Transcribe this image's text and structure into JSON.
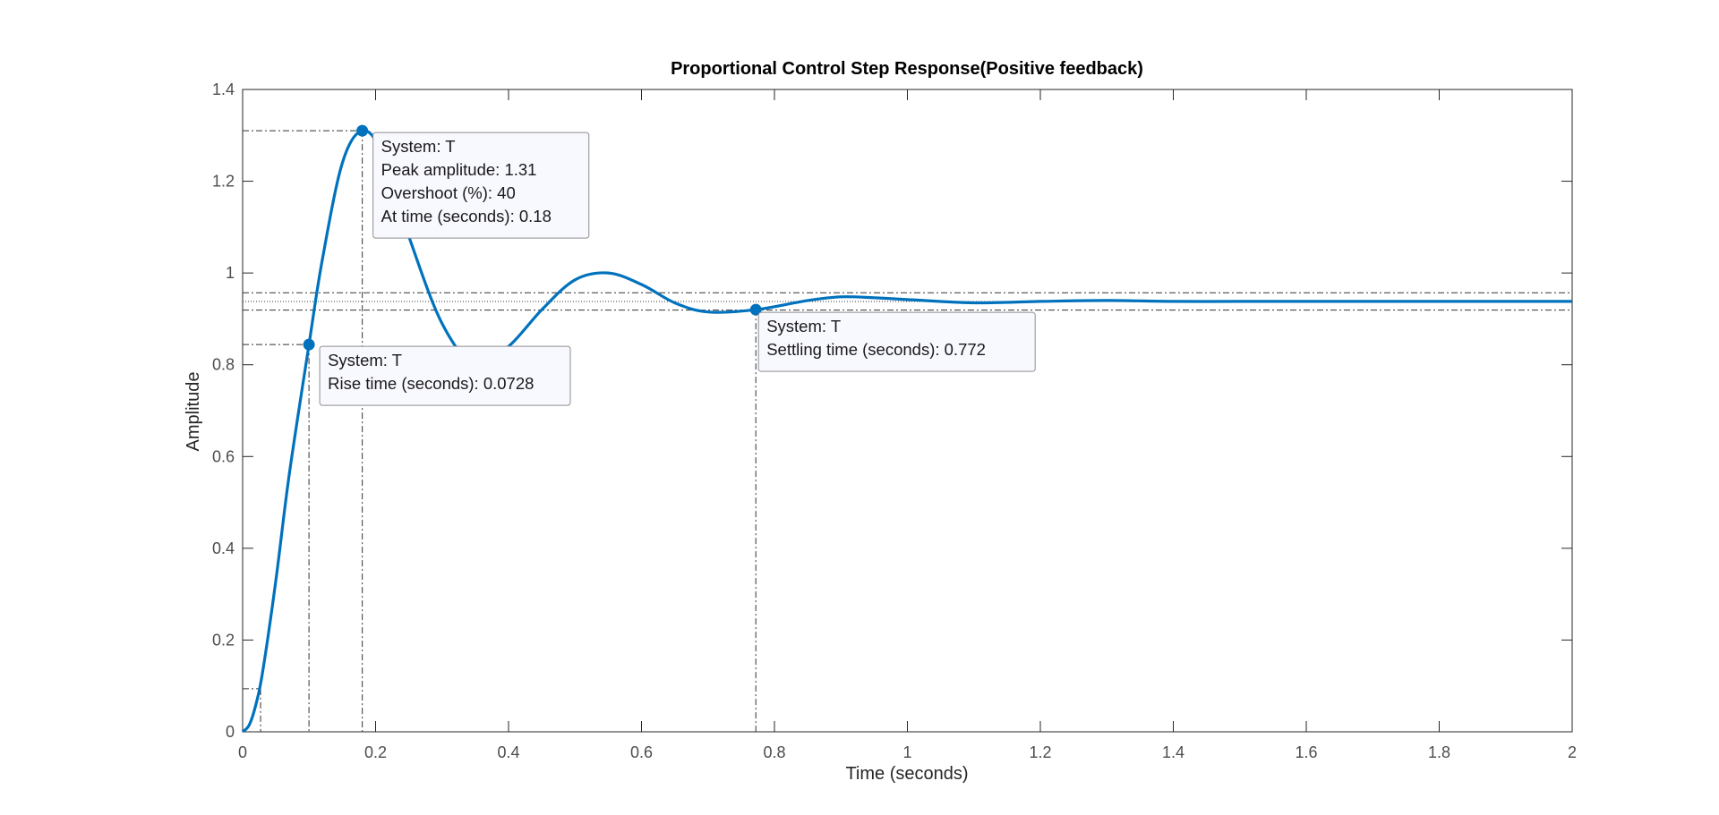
{
  "chart_data": {
    "type": "line",
    "title": "Proportional Control Step Response(Positive feedback)",
    "xlabel": "Time (seconds)",
    "ylabel": "Amplitude",
    "xlim": [
      0,
      2
    ],
    "ylim": [
      0,
      1.4
    ],
    "xticks": [
      "0",
      "0.2",
      "0.4",
      "0.6",
      "0.8",
      "1",
      "1.2",
      "1.4",
      "1.6",
      "1.8",
      "2"
    ],
    "yticks": [
      "0",
      "0.2",
      "0.4",
      "0.6",
      "0.8",
      "1",
      "1.2",
      "1.4"
    ],
    "grid": false,
    "series": [
      {
        "name": "T",
        "color": "#0072BD",
        "x": [
          0,
          0.01,
          0.02,
          0.03,
          0.05,
          0.07,
          0.1,
          0.12,
          0.15,
          0.18,
          0.21,
          0.25,
          0.3,
          0.35,
          0.4,
          0.45,
          0.5,
          0.55,
          0.6,
          0.65,
          0.7,
          0.772,
          0.85,
          0.9,
          0.95,
          1.0,
          1.1,
          1.2,
          1.3,
          1.4,
          1.5,
          1.6,
          1.7,
          1.8,
          1.9,
          2.0
        ],
        "y": [
          0,
          0.015,
          0.06,
          0.13,
          0.33,
          0.56,
          0.846,
          1.03,
          1.24,
          1.31,
          1.26,
          1.08,
          0.89,
          0.8,
          0.84,
          0.92,
          0.985,
          1.0,
          0.975,
          0.935,
          0.915,
          0.92,
          0.94,
          0.948,
          0.946,
          0.942,
          0.935,
          0.938,
          0.94,
          0.938,
          0.938,
          0.938,
          0.938,
          0.938,
          0.938,
          0.938
        ]
      }
    ],
    "steady_state": 0.938,
    "settling_band": [
      0.919,
      0.957
    ],
    "datatips": [
      {
        "x": 0.18,
        "y": 1.31,
        "lines": [
          "System: T",
          "Peak amplitude: 1.31",
          "Overshoot (%): 40",
          "At time (seconds): 0.18"
        ]
      },
      {
        "x": 0.0998,
        "y": 0.844,
        "lines": [
          "System: T",
          "Rise time (seconds): 0.0728"
        ]
      },
      {
        "x": 0.772,
        "y": 0.92,
        "lines": [
          "System: T",
          "Settling time (seconds): 0.772"
        ]
      }
    ],
    "rise_start": {
      "x": 0.027,
      "y": 0.0938
    }
  }
}
